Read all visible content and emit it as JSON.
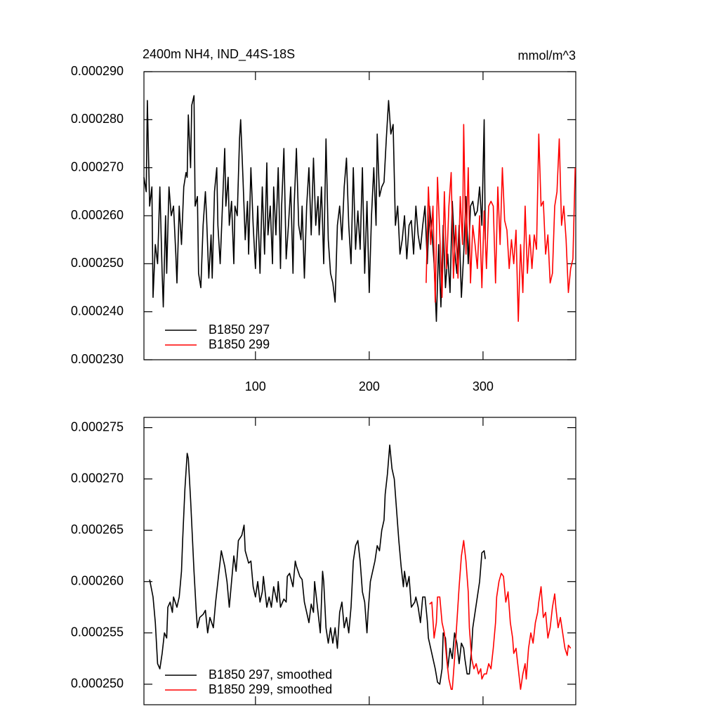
{
  "chart_data": [
    {
      "type": "line",
      "title": "2400m NH4, IND_44S-18S",
      "units_label": "mmol/m^3",
      "xlim": [
        2,
        381.5
      ],
      "xticks": [
        100,
        200,
        300
      ],
      "xtick_labels": true,
      "ylim": [
        0.00023,
        0.00029
      ],
      "yticks": [
        {
          "value": 0.00023,
          "label": "0.000230"
        },
        {
          "value": 0.00024,
          "label": "0.000240"
        },
        {
          "value": 0.00025,
          "label": "0.000250"
        },
        {
          "value": 0.00026,
          "label": "0.000260"
        },
        {
          "value": 0.00027,
          "label": "0.000270"
        },
        {
          "value": 0.00028,
          "label": "0.000280"
        },
        {
          "value": 0.00029,
          "label": "0.000290"
        }
      ],
      "legend": "lower left",
      "series": [
        {
          "name": "B1850 297",
          "color": "#000000",
          "x": [
            2,
            4,
            5,
            7,
            9,
            10,
            12,
            14,
            16,
            18,
            19,
            21,
            22,
            24,
            26,
            28,
            30,
            31,
            33,
            35,
            37,
            39,
            40,
            41,
            43,
            44,
            46,
            47,
            49,
            50,
            52,
            54,
            56,
            57,
            59,
            61,
            62,
            64,
            66,
            67,
            69,
            71,
            73,
            74,
            76,
            77,
            79,
            81,
            82,
            84,
            86,
            87,
            89,
            91,
            93,
            94,
            96,
            98,
            100,
            102,
            104,
            106,
            108,
            110,
            111,
            113,
            115,
            116,
            118,
            120,
            122,
            123,
            125,
            127,
            129,
            131,
            133,
            134,
            136,
            138,
            140,
            141,
            143,
            145,
            147,
            149,
            151,
            153,
            155,
            156,
            158,
            160,
            162,
            164,
            166,
            168,
            170,
            172,
            174,
            176,
            178,
            180,
            182,
            184,
            186,
            188,
            190,
            192,
            194,
            196,
            198,
            200,
            202,
            204,
            206,
            207,
            209,
            211,
            213,
            215,
            217,
            219,
            221,
            223,
            225,
            227,
            229,
            231,
            233,
            235,
            237,
            239,
            241,
            243,
            245,
            247,
            249,
            251,
            253,
            255,
            257,
            259,
            261,
            263,
            265,
            267,
            269,
            271,
            273,
            275,
            277,
            279,
            281,
            283,
            285,
            287,
            289,
            291,
            293,
            295,
            297,
            299,
            301,
            302
          ],
          "values": [
            0.000268,
            0.000265,
            0.000284,
            0.000262,
            0.000266,
            0.000243,
            0.000254,
            0.00025,
            0.000266,
            0.000248,
            0.000241,
            0.00026,
            0.000248,
            0.000266,
            0.00026,
            0.000262,
            0.000252,
            0.000246,
            0.000262,
            0.000254,
            0.000266,
            0.000269,
            0.000268,
            0.000281,
            0.00027,
            0.000283,
            0.000285,
            0.000262,
            0.000264,
            0.000248,
            0.000245,
            0.000258,
            0.000265,
            0.00026,
            0.000247,
            0.000256,
            0.000247,
            0.000265,
            0.00027,
            0.000258,
            0.00025,
            0.000262,
            0.000274,
            0.000262,
            0.000268,
            0.000258,
            0.000263,
            0.00025,
            0.000262,
            0.00026,
            0.000276,
            0.00028,
            0.000268,
            0.000255,
            0.000263,
            0.000252,
            0.00027,
            0.000258,
            0.000249,
            0.000262,
            0.000248,
            0.000266,
            0.000252,
            0.000271,
            0.000256,
            0.000262,
            0.00025,
            0.000266,
            0.000256,
            0.00027,
            0.000249,
            0.000262,
            0.000274,
            0.000251,
            0.000258,
            0.000266,
            0.000248,
            0.000262,
            0.000274,
            0.000258,
            0.000255,
            0.000262,
            0.000247,
            0.000262,
            0.00027,
            0.000256,
            0.000272,
            0.000258,
            0.000264,
            0.000256,
            0.000266,
            0.00025,
            0.000276,
            0.000255,
            0.000248,
            0.000246,
            0.000242,
            0.000258,
            0.000262,
            0.000255,
            0.000266,
            0.000272,
            0.000258,
            0.00025,
            0.00027,
            0.000253,
            0.000261,
            0.000253,
            0.00027,
            0.000248,
            0.000263,
            0.000244,
            0.00026,
            0.00027,
            0.000258,
            0.000277,
            0.000264,
            0.000266,
            0.000267,
            0.000276,
            0.000284,
            0.000277,
            0.000279,
            0.000258,
            0.000262,
            0.000252,
            0.000255,
            0.00026,
            0.000251,
            0.000258,
            0.000259,
            0.000252,
            0.000262,
            0.000256,
            0.000253,
            0.000258,
            0.000262,
            0.00025,
            0.000262,
            0.000257,
            0.00025,
            0.000238,
            0.000254,
            0.000241,
            0.000258,
            0.000245,
            0.000252,
            0.000244,
            0.000263,
            0.000253,
            0.000248,
            0.000258,
            0.000243,
            0.000252,
            0.000264,
            0.00025,
            0.000262,
            0.000263,
            0.00026,
            0.000261,
            0.000266,
            0.000258,
            0.00028,
            0.000255
          ]
        },
        {
          "name": "B1850 299",
          "color": "#ff0000",
          "x": [
            250,
            252,
            254,
            256,
            258,
            260,
            262,
            264,
            266,
            268,
            270,
            272,
            274,
            276,
            278,
            280,
            282,
            283,
            285,
            287,
            289,
            291,
            293,
            295,
            297,
            299,
            301,
            303,
            305,
            307,
            309,
            311,
            313,
            315,
            317,
            319,
            321,
            323,
            325,
            327,
            329,
            331,
            333,
            335,
            337,
            339,
            341,
            343,
            345,
            347,
            349,
            351,
            353,
            355,
            357,
            359,
            361,
            363,
            365,
            367,
            369,
            371,
            373,
            375,
            377,
            379,
            381
          ],
          "values": [
            0.000246,
            0.000266,
            0.000254,
            0.000262,
            0.000242,
            0.000268,
            0.000256,
            0.000243,
            0.000265,
            0.000249,
            0.000262,
            0.000269,
            0.000247,
            0.000258,
            0.000247,
            0.000264,
            0.000254,
            0.000279,
            0.000252,
            0.00027,
            0.000246,
            0.000258,
            0.000254,
            0.000249,
            0.00026,
            0.000245,
            0.000261,
            0.000249,
            0.000262,
            0.000263,
            0.000262,
            0.000246,
            0.000266,
            0.000254,
            0.00027,
            0.000259,
            0.000257,
            0.000249,
            0.000255,
            0.00025,
            0.000257,
            0.000238,
            0.000254,
            0.000244,
            0.000262,
            0.000248,
            0.000256,
            0.000249,
            0.000256,
            0.000253,
            0.000277,
            0.000262,
            0.000263,
            0.000252,
            0.000256,
            0.000246,
            0.000248,
            0.000262,
            0.000265,
            0.000276,
            0.000258,
            0.000262,
            0.000255,
            0.000244,
            0.000249,
            0.000251,
            0.00027
          ]
        }
      ]
    },
    {
      "type": "line",
      "xlim": [
        2,
        381.5
      ],
      "xticks": [
        100,
        200,
        300
      ],
      "xtick_labels": false,
      "ylim": [
        0.000248,
        0.000276
      ],
      "yticks": [
        {
          "value": 0.00025,
          "label": "0.000250"
        },
        {
          "value": 0.000255,
          "label": "0.000255"
        },
        {
          "value": 0.00026,
          "label": "0.000260"
        },
        {
          "value": 0.000265,
          "label": "0.000265"
        },
        {
          "value": 0.00027,
          "label": "0.000270"
        },
        {
          "value": 0.000275,
          "label": "0.000275"
        }
      ],
      "legend": "lower left",
      "series": [
        {
          "name": "B1850 297, smoothed",
          "color": "#000000",
          "x": [
            7,
            10,
            12,
            14,
            16,
            18,
            20,
            22,
            23,
            25,
            27,
            28,
            31,
            33,
            35,
            36,
            38,
            40,
            41,
            43,
            46,
            48,
            49,
            51,
            54,
            56,
            58,
            60,
            63,
            65,
            68,
            70,
            72,
            73,
            75,
            77,
            79,
            81,
            83,
            85,
            88,
            90,
            91,
            94,
            96,
            98,
            100,
            102,
            104,
            106,
            107,
            110,
            112,
            114,
            116,
            119,
            120,
            122,
            125,
            127,
            128,
            130,
            133,
            135,
            136,
            139,
            141,
            143,
            144,
            147,
            149,
            151,
            152,
            154,
            157,
            159,
            160,
            162,
            164,
            166,
            168,
            170,
            172,
            174,
            176,
            178,
            180,
            182,
            184,
            186,
            188,
            190,
            192,
            194,
            196,
            198,
            199,
            201,
            203,
            205,
            207,
            209,
            211,
            213,
            214,
            216,
            218,
            220,
            222,
            224,
            226,
            228,
            230,
            231,
            233,
            235,
            237,
            240,
            241,
            243,
            245,
            247,
            249,
            251,
            252,
            254,
            256,
            258,
            260,
            262,
            264,
            265,
            267,
            269,
            271,
            273,
            275,
            277,
            279,
            281,
            283,
            284,
            286,
            288,
            290,
            291,
            293,
            295,
            297,
            299,
            301,
            302
          ],
          "values": [
            0.0002602,
            0.0002585,
            0.000256,
            0.000252,
            0.0002515,
            0.000253,
            0.000255,
            0.0002545,
            0.0002575,
            0.000258,
            0.000257,
            0.0002585,
            0.0002575,
            0.0002585,
            0.000261,
            0.000264,
            0.000269,
            0.0002725,
            0.000272,
            0.000268,
            0.000261,
            0.000257,
            0.0002555,
            0.0002565,
            0.0002568,
            0.0002572,
            0.000255,
            0.0002565,
            0.0002555,
            0.000258,
            0.000261,
            0.000263,
            0.000262,
            0.0002615,
            0.00026,
            0.0002575,
            0.00026,
            0.0002625,
            0.000261,
            0.000264,
            0.0002645,
            0.0002655,
            0.000263,
            0.0002618,
            0.000262,
            0.0002595,
            0.0002585,
            0.00026,
            0.000258,
            0.000259,
            0.0002605,
            0.0002575,
            0.0002585,
            0.0002575,
            0.0002595,
            0.000258,
            0.00026,
            0.0002575,
            0.0002583,
            0.000258,
            0.0002605,
            0.0002608,
            0.0002595,
            0.000262,
            0.0002615,
            0.0002605,
            0.0002602,
            0.000258,
            0.0002575,
            0.000256,
            0.0002578,
            0.000257,
            0.00026,
            0.000258,
            0.000255,
            0.000261,
            0.00026,
            0.0002555,
            0.000254,
            0.0002555,
            0.000254,
            0.0002555,
            0.0002535,
            0.000257,
            0.000258,
            0.0002555,
            0.0002565,
            0.000255,
            0.0002575,
            0.000262,
            0.0002635,
            0.000264,
            0.000262,
            0.000259,
            0.000258,
            0.000255,
            0.000257,
            0.00026,
            0.000261,
            0.000262,
            0.0002635,
            0.000263,
            0.000265,
            0.000266,
            0.0002685,
            0.0002705,
            0.0002733,
            0.000271,
            0.00027,
            0.000267,
            0.000264,
            0.0002615,
            0.0002595,
            0.000261,
            0.0002595,
            0.0002605,
            0.0002575,
            0.000258,
            0.0002585,
            0.0002575,
            0.000256,
            0.0002585,
            0.0002585,
            0.0002562,
            0.0002545,
            0.0002535,
            0.0002525,
            0.0002515,
            0.0002502,
            0.00025,
            0.0002515,
            0.000255,
            0.0002545,
            0.0002515,
            0.0002535,
            0.0002525,
            0.000255,
            0.000254,
            0.000252,
            0.000254,
            0.0002535,
            0.0002525,
            0.000251,
            0.000251,
            0.0002535,
            0.0002555,
            0.000257,
            0.0002585,
            0.00026,
            0.0002628,
            0.000263,
            0.0002622
          ]
        },
        {
          "name": "B1850 299, smoothed",
          "color": "#ff0000",
          "x": [
            253,
            255,
            257,
            259,
            260,
            262,
            264,
            266,
            268,
            270,
            272,
            273,
            275,
            277,
            279,
            281,
            283,
            285,
            287,
            288,
            290,
            292,
            294,
            296,
            298,
            299,
            301,
            303,
            305,
            307,
            309,
            311,
            312,
            314,
            316,
            318,
            320,
            322,
            324,
            326,
            327,
            329,
            331,
            333,
            335,
            337,
            338,
            340,
            342,
            344,
            346,
            348,
            349,
            351,
            353,
            355,
            357,
            359,
            361,
            363,
            364,
            366,
            368,
            370,
            372,
            374,
            375,
            377
          ],
          "values": [
            0.0002578,
            0.000258,
            0.0002545,
            0.000256,
            0.0002585,
            0.0002585,
            0.000256,
            0.000255,
            0.0002525,
            0.0002505,
            0.0002495,
            0.0002495,
            0.0002525,
            0.000256,
            0.0002595,
            0.0002625,
            0.000264,
            0.000262,
            0.000259,
            0.0002555,
            0.0002525,
            0.0002515,
            0.000252,
            0.000251,
            0.0002515,
            0.0002505,
            0.000251,
            0.000251,
            0.000252,
            0.0002515,
            0.0002535,
            0.000256,
            0.0002585,
            0.00026,
            0.0002608,
            0.0002605,
            0.000258,
            0.000259,
            0.000256,
            0.0002545,
            0.000253,
            0.0002535,
            0.0002515,
            0.0002495,
            0.000251,
            0.000252,
            0.0002505,
            0.0002535,
            0.000255,
            0.000254,
            0.000256,
            0.000257,
            0.000258,
            0.0002595,
            0.0002565,
            0.000257,
            0.0002545,
            0.0002555,
            0.0002575,
            0.0002588,
            0.0002575,
            0.0002555,
            0.0002565,
            0.000255,
            0.0002535,
            0.0002528,
            0.0002538,
            0.0002535
          ]
        }
      ]
    }
  ]
}
